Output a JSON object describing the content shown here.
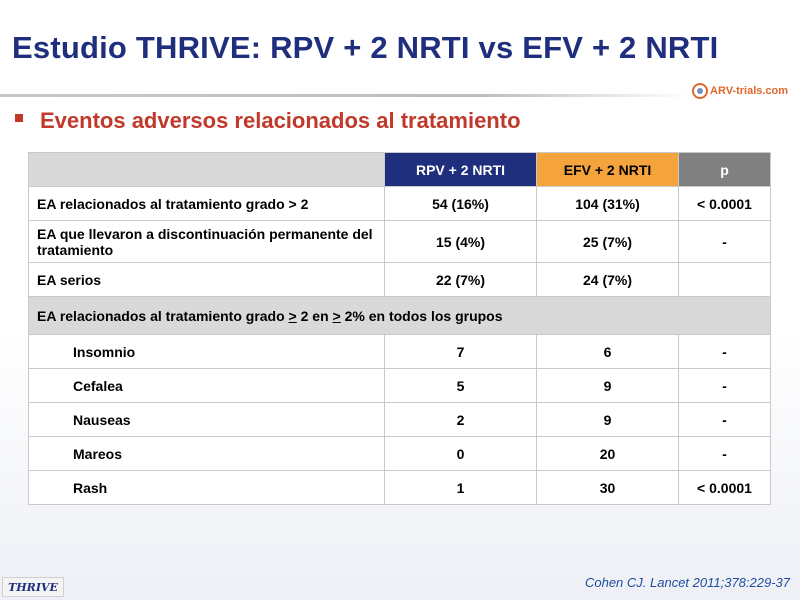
{
  "slide": {
    "title": "Estudio THRIVE: RPV + 2 NRTI vs EFV + 2 NRTI",
    "logo_text": "ARV-trials.com",
    "subtitle": "Eventos adversos relacionados al tratamiento",
    "citation": "Cohen CJ. Lancet 2011;378:229-37",
    "badge": "THRIVE",
    "colors": {
      "title": "#1f2f7d",
      "subtitle": "#c0392b",
      "rpv_header": "#1f2f7d",
      "efv_header": "#f5a33c",
      "p_header": "#808080"
    }
  },
  "table": {
    "headers": {
      "blank": "",
      "rpv": "RPV + 2 NRTI",
      "efv": "EFV + 2 NRTI",
      "p": "p"
    },
    "rows": [
      {
        "label": "EA relacionados al tratamiento grado > 2",
        "rpv": "54 (16%)",
        "efv": "104 (31%)",
        "p": "< 0.0001"
      },
      {
        "label": "EA que llevaron a discontinuación permanente del tratamiento",
        "rpv": "15 (4%)",
        "efv": "25 (7%)",
        "p": "-"
      },
      {
        "label": "EA serios",
        "rpv": "22 (7%)",
        "efv": "24 (7%)",
        "p": ""
      }
    ],
    "section": {
      "part1": "EA relacionados al tratamiento grado ",
      "ge1": ">",
      "part2": " 2 en ",
      "ge2": ">",
      "part3": " 2% en todos los grupos"
    },
    "sub_rows": [
      {
        "label": "Insomnio",
        "rpv": "7",
        "efv": "6",
        "p": "-"
      },
      {
        "label": "Cefalea",
        "rpv": "5",
        "efv": "9",
        "p": "-"
      },
      {
        "label": "Nauseas",
        "rpv": "2",
        "efv": "9",
        "p": "-"
      },
      {
        "label": "Mareos",
        "rpv": "0",
        "efv": "20",
        "p": "-"
      },
      {
        "label": "Rash",
        "rpv": "1",
        "efv": "30",
        "p": "< 0.0001"
      }
    ]
  }
}
